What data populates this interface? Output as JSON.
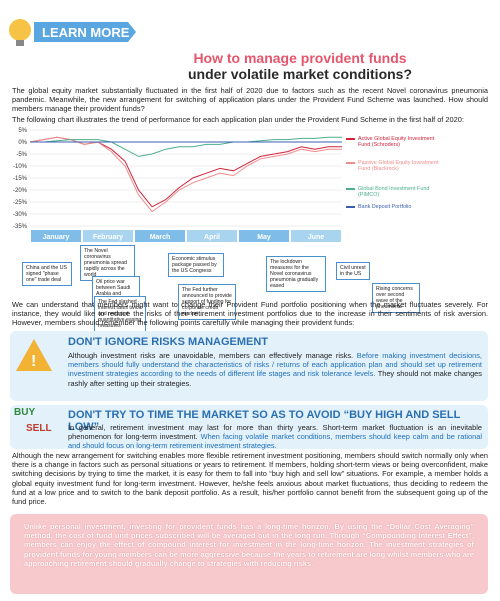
{
  "header": {
    "badge": "LEARN MORE",
    "title_line1": "How to manage provident funds",
    "title_line2": "under volatile market conditions?"
  },
  "intro": "The global equity market substantially fluctuated in the first half of 2020 due to factors such as the recent Novel coronavirus pneumonia pandemic. Meanwhile, the new arrangement for switching of application plans under the Provident Fund Scheme was launched. How should members manage their provident funds?",
  "chart_intro": "The following chart illustrates the trend of performance for each application plan under the Provident Fund Scheme in the first half of 2020:",
  "chart_data": {
    "type": "line",
    "months": [
      "January",
      "February",
      "March",
      "April",
      "May",
      "June"
    ],
    "ylim": [
      -35,
      5
    ],
    "yticks": [
      {
        "value": 5,
        "label": "5%"
      },
      {
        "value": 0,
        "label": "0%"
      },
      {
        "value": -5,
        "label": "-5%"
      },
      {
        "value": -10,
        "label": "-10%"
      },
      {
        "value": -15,
        "label": "-15%"
      },
      {
        "value": -20,
        "label": "-20%"
      },
      {
        "value": -25,
        "label": "-25%"
      },
      {
        "value": -30,
        "label": "-30%"
      },
      {
        "value": -35,
        "label": "-35%"
      }
    ],
    "grid": true,
    "series": [
      {
        "name": "Active Global Equity Investment Fund (Schroders)",
        "color": "#d0243c",
        "values": [
          0,
          1,
          2,
          1,
          -1,
          0,
          -3,
          -8,
          -20,
          -27,
          -24,
          -19,
          -15,
          -13,
          -11,
          -12,
          -9,
          -6,
          -5,
          -4,
          -2,
          -3,
          -2,
          -2
        ]
      },
      {
        "name": "Passive Global Equity Investment Fund (Blackrock)",
        "color": "#f08c8c",
        "values": [
          0,
          1,
          2,
          1,
          -1,
          0,
          -4,
          -10,
          -22,
          -29,
          -25,
          -20,
          -17,
          -15,
          -13,
          -14,
          -10,
          -7,
          -6,
          -5,
          -3,
          -4,
          -3,
          -3
        ]
      },
      {
        "name": "Global Bond Investment Fund (PIMCO)",
        "color": "#4caf8a",
        "values": [
          0,
          0,
          0.5,
          1,
          1,
          1,
          0,
          -3,
          -6,
          -5,
          -3,
          -2,
          -2,
          -1,
          -1,
          0,
          0,
          0.5,
          1,
          1,
          1.5,
          1.5,
          2,
          2
        ]
      },
      {
        "name": "Bank Deposit Portfolio",
        "color": "#3a5fb0",
        "values": [
          0,
          0,
          0,
          0,
          0,
          0,
          0,
          0,
          0,
          0,
          0,
          0,
          0,
          0,
          0,
          0,
          0,
          0,
          0,
          0,
          0,
          0,
          0,
          0
        ]
      }
    ],
    "events": [
      "China and the US signed \"phase one\" trade deal",
      "The Novel coronavirus pneumonia spread rapidly across the world",
      "Oil price war between Saudi Arabia and Russia broke out",
      "The Fed slashed interest rates twice and restarted quantitative easing measures",
      "Economic stimulus package passed by the US Congress",
      "The Fed further announced to provide support of funding for corporate credit market",
      "The lockdown measures for the Novel coronavirus pneumonia gradually eased",
      "Civil unrest in the US",
      "Rising concerns over second wave of the pneumonia"
    ]
  },
  "summary": "We can understand that members might want to change their Provident Fund portfolio positioning when the market fluctuates severely. For instance, they would like to reduce the risks of their retirement investment portfolios due to the increase in their sentiments of risk aversion. However, members should remember the following points carefully while managing their provident funds:",
  "section1": {
    "heading": "DON'T IGNORE RISKS MANAGEMENT",
    "text1": "Although investment risks are unavoidable, members can effectively manage risks. ",
    "highlight": "Before making investment decisions, members should fully understand the characteristics of risks / returns of each application plan and should set up retirement investment strategies according to the needs of different life stages and risk tolerance levels.",
    "text2": " They should not make changes rashly after setting up their strategies."
  },
  "section2": {
    "heading": "DON'T TRY TO TIME THE MARKET SO AS TO AVOID “BUY HIGH AND SELL LOW”",
    "icon_buy": "BUY",
    "icon_sell": "SELL",
    "text1": "In general, retirement investment may last for more than thirty years. Short-term market fluctuation is an inevitable phenomenon for long-term investment. ",
    "highlight": "When facing volatile market conditions, members should keep calm and be rational and should focus on long-term retirement investment strategies.",
    "text2": "Although the new arrangement for switching enables more flexible retirement investment positioning, members should switch normally only when there is a change in factors such as personal situations or years to retirement. If members, holding short-term views or being overconfident, make switching decisions by trying to time the market, it is easy for them to fall into “buy high and sell low” situations. For example, a member holds a global equity investment fund for long-term investment. However, he/she feels anxious about market fluctuations, thus deciding to redeem the fund at a low price and to switch to the bank deposit portfolio. As a result, his/her portfolio cannot benefit from the subsequent going up of the fund price."
  },
  "closing": "Unlike personal investment, investing for provident funds has a long-time horizon. By using the “Dollar Cost Averaging” method, the cost of fund unit prices subscribed will be averaged out in the long run. Through “Compounding Interest Effect”, members can enjoy the effect of compound interest for investment in the long-time horizon. The investment strategies of provident funds for young members can be more aggressive because the years to retirement are long whilst members who are approaching retirement should gradually change to strategies with reducing risks."
}
